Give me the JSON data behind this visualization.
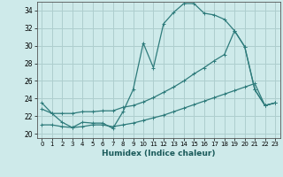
{
  "xlabel": "Humidex (Indice chaleur)",
  "xlim": [
    -0.5,
    23.5
  ],
  "ylim": [
    19.5,
    35.0
  ],
  "xticks": [
    0,
    1,
    2,
    3,
    4,
    5,
    6,
    7,
    8,
    9,
    10,
    11,
    12,
    13,
    14,
    15,
    16,
    17,
    18,
    19,
    20,
    21,
    22,
    23
  ],
  "yticks": [
    20,
    22,
    24,
    26,
    28,
    30,
    32,
    34
  ],
  "background_color": "#ceeaea",
  "grid_color": "#aecece",
  "line_color": "#2e7b7b",
  "line1_y": [
    23.5,
    22.3,
    21.3,
    20.7,
    21.3,
    21.2,
    21.2,
    20.6,
    22.5,
    25.0,
    30.3,
    27.5,
    32.5,
    33.8,
    34.8,
    34.8,
    33.7,
    33.5,
    33.0,
    31.7,
    29.9,
    25.0,
    23.2,
    23.5
  ],
  "line2_y": [
    22.8,
    22.3,
    22.3,
    22.3,
    22.5,
    22.5,
    22.6,
    22.6,
    23.0,
    23.2,
    23.6,
    24.1,
    24.7,
    25.3,
    26.0,
    26.8,
    27.5,
    28.3,
    29.0,
    31.7,
    29.9,
    25.0,
    23.2,
    23.5
  ],
  "line3_y": [
    21.0,
    21.0,
    20.8,
    20.7,
    20.8,
    21.0,
    21.0,
    20.8,
    21.0,
    21.2,
    21.5,
    21.8,
    22.1,
    22.5,
    22.9,
    23.3,
    23.7,
    24.1,
    24.5,
    24.9,
    25.3,
    25.7,
    23.2,
    23.5
  ]
}
